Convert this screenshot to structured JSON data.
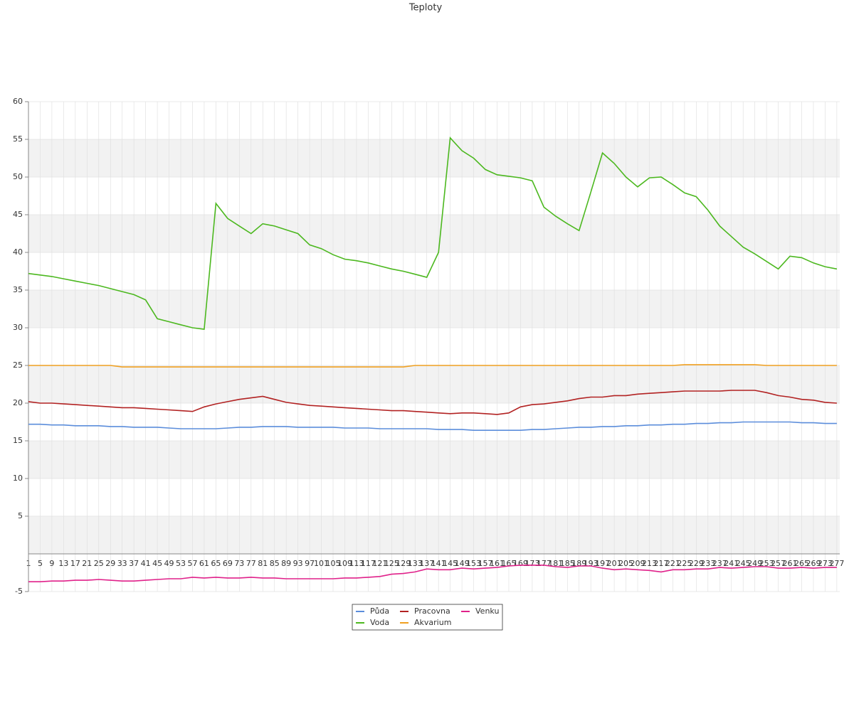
{
  "chart_data": {
    "type": "line",
    "title": "Teploty",
    "x": [
      1,
      5,
      9,
      13,
      17,
      21,
      25,
      29,
      33,
      37,
      41,
      45,
      49,
      53,
      57,
      61,
      65,
      69,
      73,
      77,
      81,
      85,
      89,
      93,
      97,
      101,
      105,
      109,
      113,
      117,
      121,
      125,
      129,
      133,
      137,
      141,
      145,
      149,
      153,
      157,
      161,
      165,
      169,
      173,
      177,
      181,
      185,
      189,
      193,
      197,
      201,
      205,
      209,
      213,
      217,
      221,
      225,
      229,
      233,
      237,
      241,
      245,
      249,
      253,
      257,
      261,
      265,
      269,
      273,
      277
    ],
    "xlim": [
      1,
      278
    ],
    "ylim": [
      -5,
      60
    ],
    "yticks": [
      -5,
      5,
      10,
      15,
      20,
      25,
      30,
      35,
      40,
      45,
      50,
      55,
      60
    ],
    "grid": true,
    "legend": "bottom",
    "series": [
      {
        "name": "Půda",
        "color": "#5b8ddb",
        "values": [
          17.2,
          17.2,
          17.1,
          17.1,
          17.0,
          17.0,
          17.0,
          16.9,
          16.9,
          16.8,
          16.8,
          16.8,
          16.7,
          16.6,
          16.6,
          16.6,
          16.6,
          16.7,
          16.8,
          16.8,
          16.9,
          16.9,
          16.9,
          16.8,
          16.8,
          16.8,
          16.8,
          16.7,
          16.7,
          16.7,
          16.6,
          16.6,
          16.6,
          16.6,
          16.6,
          16.5,
          16.5,
          16.5,
          16.4,
          16.4,
          16.4,
          16.4,
          16.4,
          16.5,
          16.5,
          16.6,
          16.7,
          16.8,
          16.8,
          16.9,
          16.9,
          17.0,
          17.0,
          17.1,
          17.1,
          17.2,
          17.2,
          17.3,
          17.3,
          17.4,
          17.4,
          17.5,
          17.5,
          17.5,
          17.5,
          17.5,
          17.4,
          17.4,
          17.3,
          17.3
        ]
      },
      {
        "name": "Voda",
        "color": "#4cb81f",
        "values": [
          37.2,
          37.0,
          36.8,
          36.5,
          36.2,
          35.9,
          35.6,
          35.2,
          34.8,
          34.4,
          33.7,
          31.2,
          30.8,
          30.4,
          30.0,
          29.8,
          46.5,
          44.5,
          43.5,
          42.5,
          43.8,
          43.5,
          43.0,
          42.5,
          41.0,
          40.5,
          39.7,
          39.1,
          38.9,
          38.6,
          38.2,
          37.8,
          37.5,
          37.1,
          36.7,
          40,
          55.2,
          53.5,
          52.5,
          51.0,
          50.3,
          50.1,
          49.9,
          49.5,
          46.0,
          44.8,
          43.8,
          42.9,
          48,
          53.2,
          51.8,
          50.0,
          48.7,
          49.9,
          50.0,
          49.0,
          47.9,
          47.4,
          45.6,
          43.5,
          42.1,
          40.7,
          39.8,
          38.8,
          37.8,
          39.5,
          39.3,
          38.6,
          38.1,
          37.8
        ]
      },
      {
        "name": "Pracovna",
        "color": "#b22222",
        "values": [
          20.2,
          20.0,
          20.0,
          19.9,
          19.8,
          19.7,
          19.6,
          19.5,
          19.4,
          19.4,
          19.3,
          19.2,
          19.1,
          19.0,
          18.9,
          19.5,
          19.9,
          20.2,
          20.5,
          20.7,
          20.9,
          20.5,
          20.1,
          19.9,
          19.7,
          19.6,
          19.5,
          19.4,
          19.3,
          19.2,
          19.1,
          19.0,
          19.0,
          18.9,
          18.8,
          18.7,
          18.6,
          18.7,
          18.7,
          18.6,
          18.5,
          18.7,
          19.5,
          19.8,
          19.9,
          20.1,
          20.3,
          20.6,
          20.8,
          20.8,
          21.0,
          21.0,
          21.2,
          21.3,
          21.4,
          21.5,
          21.6,
          21.6,
          21.6,
          21.6,
          21.7,
          21.7,
          21.7,
          21.4,
          21.0,
          20.8,
          20.5,
          20.4,
          20.1,
          20.0
        ]
      },
      {
        "name": "Akvarium",
        "color": "#f0a020",
        "values": [
          25,
          25,
          25,
          25,
          25,
          25,
          25,
          25,
          24.8,
          24.8,
          24.8,
          24.8,
          24.8,
          24.8,
          24.8,
          24.8,
          24.8,
          24.8,
          24.8,
          24.8,
          24.8,
          24.8,
          24.8,
          24.8,
          24.8,
          24.8,
          24.8,
          24.8,
          24.8,
          24.8,
          24.8,
          24.8,
          24.8,
          25,
          25,
          25,
          25,
          25,
          25,
          25,
          25,
          25,
          25,
          25,
          25,
          25,
          25,
          25,
          25,
          25,
          25,
          25,
          25,
          25,
          25,
          25,
          25.1,
          25.1,
          25.1,
          25.1,
          25.1,
          25.1,
          25.1,
          25,
          25,
          25,
          25,
          25,
          25,
          25
        ]
      },
      {
        "name": "Venku",
        "color": "#e0218a",
        "values": [
          -3.7,
          -3.7,
          -3.6,
          -3.6,
          -3.5,
          -3.5,
          -3.4,
          -3.5,
          -3.6,
          -3.6,
          -3.5,
          -3.4,
          -3.3,
          -3.3,
          -3.1,
          -3.2,
          -3.1,
          -3.2,
          -3.2,
          -3.1,
          -3.2,
          -3.2,
          -3.3,
          -3.3,
          -3.3,
          -3.3,
          -3.3,
          -3.2,
          -3.2,
          -3.1,
          -3.0,
          -2.7,
          -2.6,
          -2.4,
          -2.0,
          -2.1,
          -2.1,
          -1.9,
          -2.0,
          -1.9,
          -1.8,
          -1.6,
          -1.5,
          -1.5,
          -1.5,
          -1.7,
          -1.8,
          -1.6,
          -1.6,
          -1.9,
          -2.1,
          -2.0,
          -2.1,
          -2.2,
          -2.4,
          -2.1,
          -2.1,
          -2.0,
          -2.0,
          -1.8,
          -1.9,
          -1.8,
          -1.7,
          -1.7,
          -1.9,
          -1.9,
          -1.8,
          -1.9,
          -1.8,
          -1.8
        ]
      }
    ]
  }
}
